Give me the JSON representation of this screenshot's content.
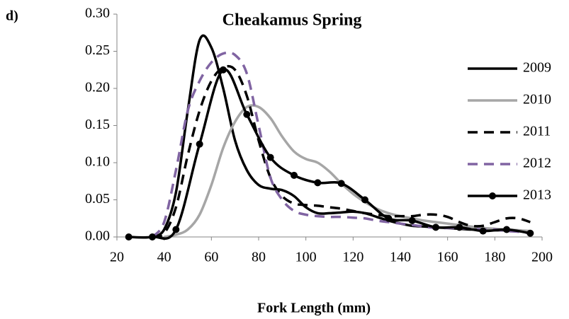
{
  "chart_data": {
    "type": "line",
    "panel_label": "d)",
    "title": "Cheakamus Spring",
    "x_label": "Fork Length (mm)",
    "xlim": [
      20,
      200
    ],
    "xticks": [
      20,
      40,
      60,
      80,
      100,
      120,
      140,
      160,
      180,
      200
    ],
    "ylim": [
      0,
      0.3
    ],
    "yticks": [
      {
        "value": 0,
        "label": "0.00"
      },
      {
        "value": 0.05,
        "label": "0.05"
      },
      {
        "value": 0.1,
        "label": "0.10"
      },
      {
        "value": 0.15,
        "label": "0.15"
      },
      {
        "value": 0.2,
        "label": "0.20"
      },
      {
        "value": 0.25,
        "label": "0.25"
      },
      {
        "value": 0.3,
        "label": "0.30"
      }
    ],
    "grid": false,
    "legend": "right",
    "series": [
      {
        "name": "2009",
        "color": "#000000",
        "dashed": false,
        "markers": false,
        "x": [
          35,
          40,
          45,
          50,
          55,
          60,
          65,
          70,
          75,
          80,
          85,
          90,
          95,
          100,
          105,
          110,
          115,
          120,
          125,
          130,
          135,
          140,
          145,
          150,
          155,
          160,
          165,
          170,
          175,
          180,
          185,
          190,
          195
        ],
        "values": [
          0,
          0.01,
          0.06,
          0.17,
          0.265,
          0.255,
          0.2,
          0.13,
          0.09,
          0.07,
          0.065,
          0.063,
          0.055,
          0.04,
          0.032,
          0.032,
          0.033,
          0.034,
          0.032,
          0.027,
          0.022,
          0.018,
          0.015,
          0.014,
          0.013,
          0.012,
          0.011,
          0.01,
          0.01,
          0.009,
          0.009,
          0.008,
          0.006
        ]
      },
      {
        "name": "2010",
        "color": "#a6a6a6",
        "dashed": false,
        "markers": false,
        "x": [
          40,
          45,
          50,
          55,
          60,
          65,
          70,
          75,
          80,
          85,
          90,
          95,
          100,
          105,
          110,
          115,
          120,
          125,
          130,
          135,
          140,
          145,
          150,
          155,
          160,
          165,
          170,
          175,
          180,
          185,
          190,
          195
        ],
        "values": [
          0,
          0.003,
          0.01,
          0.03,
          0.07,
          0.12,
          0.155,
          0.175,
          0.175,
          0.16,
          0.135,
          0.115,
          0.105,
          0.1,
          0.088,
          0.072,
          0.058,
          0.047,
          0.038,
          0.032,
          0.028,
          0.025,
          0.022,
          0.02,
          0.018,
          0.016,
          0.014,
          0.012,
          0.011,
          0.01,
          0.009,
          0.008
        ]
      },
      {
        "name": "2011",
        "color": "#000000",
        "dashed": true,
        "markers": false,
        "x": [
          35,
          40,
          45,
          50,
          55,
          60,
          65,
          70,
          75,
          80,
          85,
          90,
          95,
          100,
          105,
          110,
          115,
          120,
          125,
          130,
          135,
          140,
          145,
          150,
          155,
          160,
          165,
          170,
          175,
          180,
          185,
          190,
          195
        ],
        "values": [
          0,
          0.005,
          0.04,
          0.11,
          0.17,
          0.21,
          0.228,
          0.225,
          0.19,
          0.13,
          0.08,
          0.055,
          0.045,
          0.043,
          0.042,
          0.04,
          0.038,
          0.035,
          0.032,
          0.03,
          0.028,
          0.028,
          0.028,
          0.03,
          0.03,
          0.027,
          0.02,
          0.015,
          0.015,
          0.02,
          0.025,
          0.025,
          0.02
        ]
      },
      {
        "name": "2012",
        "color": "#8064a2",
        "dashed": true,
        "markers": false,
        "x": [
          35,
          40,
          45,
          50,
          55,
          60,
          65,
          70,
          75,
          80,
          85,
          90,
          95,
          100,
          105,
          110,
          115,
          120,
          125,
          130,
          135,
          140,
          145,
          150,
          155,
          160,
          165,
          170,
          175,
          180,
          185,
          190,
          195
        ],
        "values": [
          0,
          0.02,
          0.09,
          0.17,
          0.21,
          0.235,
          0.247,
          0.245,
          0.22,
          0.15,
          0.08,
          0.05,
          0.035,
          0.03,
          0.028,
          0.027,
          0.027,
          0.026,
          0.025,
          0.022,
          0.02,
          0.018,
          0.016,
          0.014,
          0.012,
          0.012,
          0.012,
          0.011,
          0.01,
          0.01,
          0.008,
          0.007,
          0.005
        ]
      },
      {
        "name": "2013",
        "color": "#000000",
        "dashed": false,
        "markers": true,
        "x": [
          25,
          35,
          45,
          55,
          65,
          75,
          85,
          95,
          105,
          115,
          125,
          135,
          145,
          155,
          165,
          175,
          185,
          195
        ],
        "values": [
          0,
          0,
          0.01,
          0.125,
          0.225,
          0.165,
          0.107,
          0.083,
          0.073,
          0.072,
          0.05,
          0.025,
          0.022,
          0.013,
          0.013,
          0.008,
          0.01,
          0.005
        ]
      }
    ]
  }
}
